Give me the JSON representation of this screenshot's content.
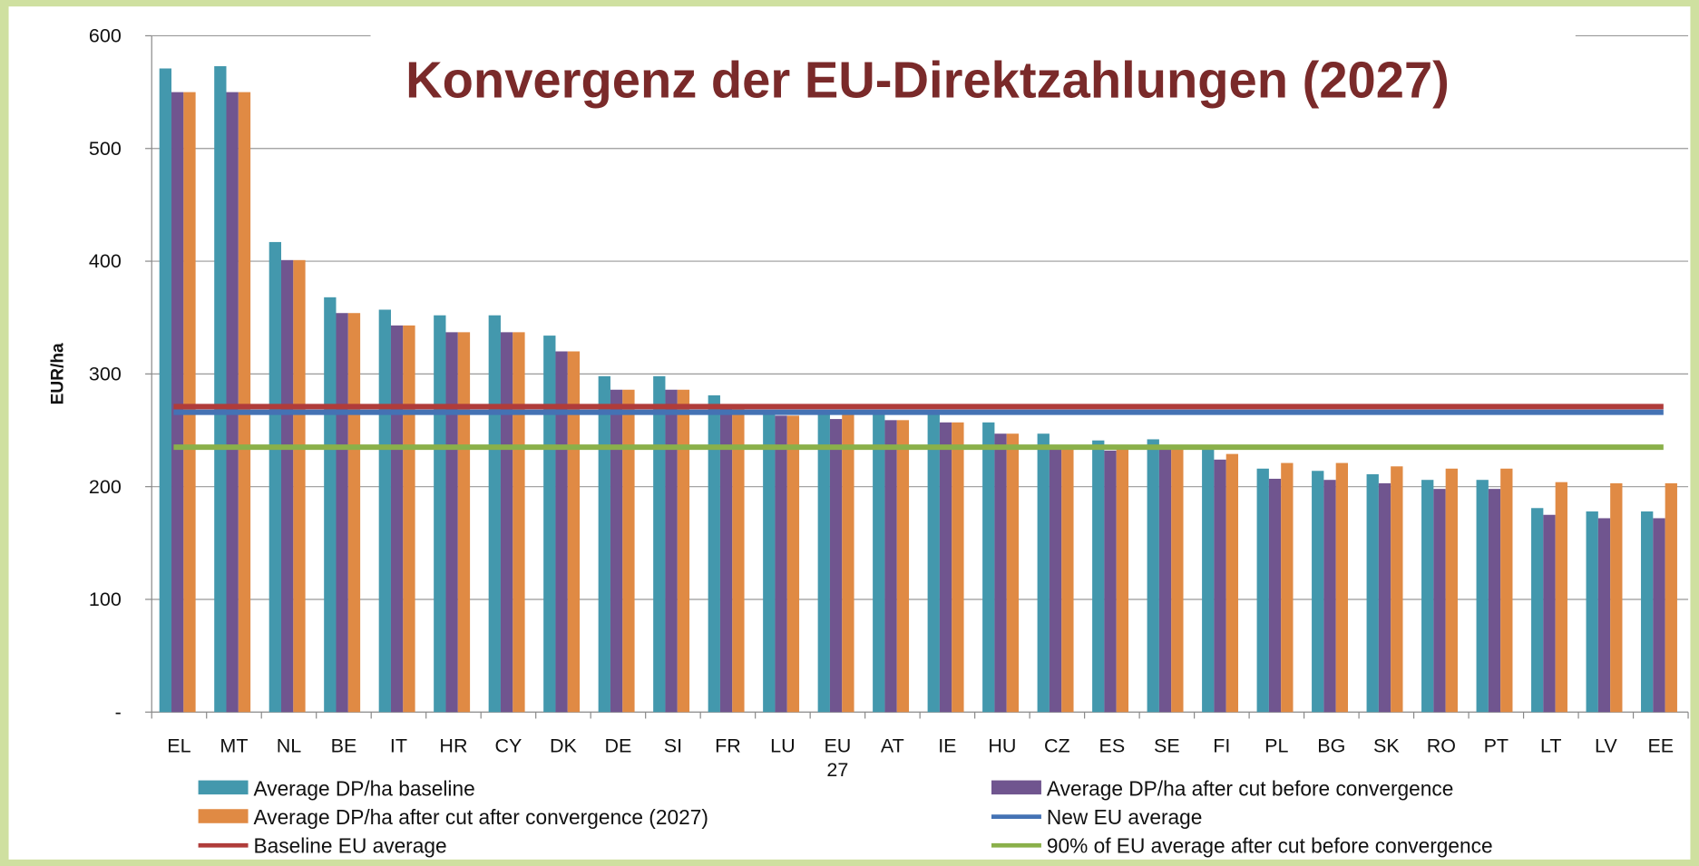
{
  "chart_data": {
    "type": "bar",
    "title": "Konvergenz der EU-Direktzahlungen (2027)",
    "y_label": "EUR/ha",
    "categories": [
      "EL",
      "MT",
      "NL",
      "BE",
      "IT",
      "HR",
      "CY",
      "DK",
      "DE",
      "SI",
      "FR",
      "LU",
      "EU 27",
      "AT",
      "IE",
      "HU",
      "CZ",
      "ES",
      "SE",
      "FI",
      "PL",
      "BG",
      "SK",
      "RO",
      "PT",
      "LT",
      "LV",
      "EE"
    ],
    "series": [
      {
        "name": "Average DP/ha baseline",
        "color": "#4398ad",
        "values": [
          571,
          573,
          417,
          368,
          357,
          352,
          352,
          334,
          298,
          298,
          281,
          268,
          268,
          268,
          268,
          257,
          247,
          241,
          242,
          233,
          216,
          214,
          211,
          206,
          206,
          181,
          178,
          178
        ]
      },
      {
        "name": "Average DP/ha after cut before convergence",
        "color": "#70558f",
        "values": [
          550,
          550,
          401,
          354,
          343,
          337,
          337,
          320,
          286,
          286,
          270,
          263,
          260,
          259,
          257,
          247,
          236,
          232,
          233,
          224,
          207,
          206,
          203,
          198,
          198,
          175,
          172,
          172
        ]
      },
      {
        "name": "Average DP/ha after cut after convergence (2027)",
        "color": "#e08a44",
        "values": [
          550,
          550,
          401,
          354,
          343,
          337,
          337,
          320,
          286,
          286,
          270,
          263,
          266,
          259,
          257,
          247,
          236,
          236,
          236,
          229,
          221,
          221,
          218,
          216,
          216,
          204,
          203,
          203
        ]
      }
    ],
    "reference_lines": [
      {
        "name": "New EU average",
        "color": "#4472b4",
        "value": 266
      },
      {
        "name": "Baseline EU average",
        "color": "#b03c3a",
        "value": 271
      },
      {
        "name": "90% of EU average after cut before convergence",
        "color": "#8ab04a",
        "value": 235
      }
    ],
    "ylim": [
      0,
      600
    ],
    "yticks": [
      {
        "value": 0,
        "label": "-"
      },
      100,
      200,
      300,
      400,
      500,
      600
    ],
    "grid": true
  }
}
